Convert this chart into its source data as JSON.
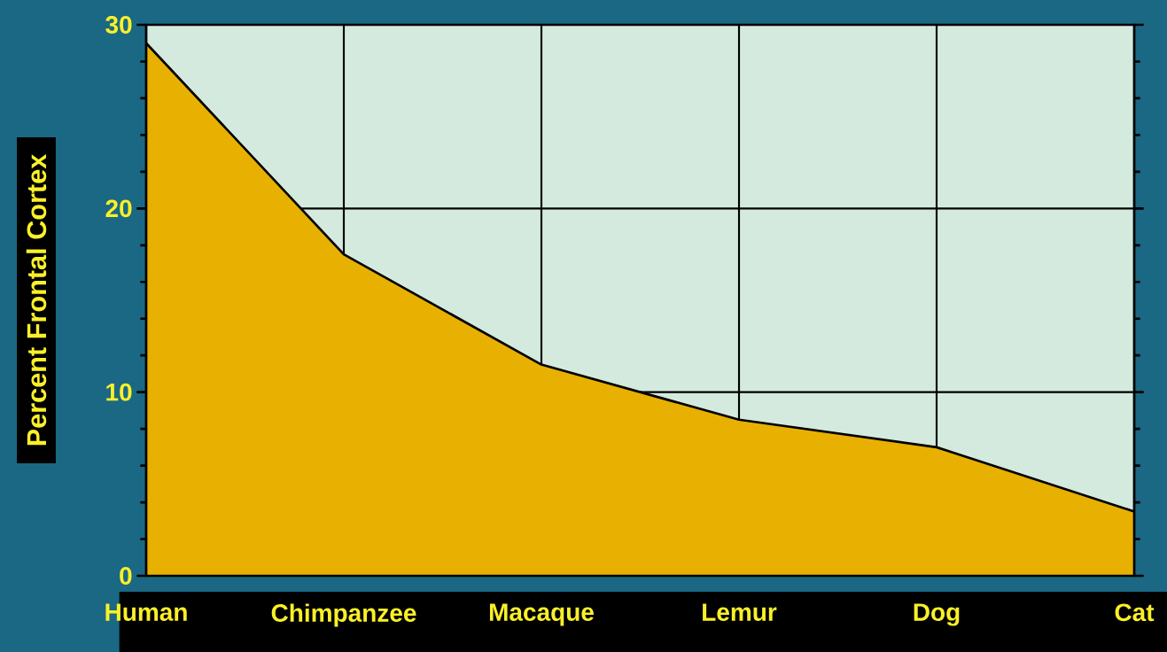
{
  "chart_data": {
    "type": "area",
    "ylabel": "Percent Frontal Cortex",
    "categories": [
      "Human",
      "Chimpanzee",
      "Macaque",
      "Lemur",
      "Dog",
      "Cat"
    ],
    "values": [
      29,
      17.5,
      11.5,
      8.5,
      7,
      3.5
    ],
    "color": "#e8b000",
    "ylim": [
      0,
      30
    ],
    "yticks": [
      0,
      10,
      20,
      30
    ],
    "grid": true
  }
}
